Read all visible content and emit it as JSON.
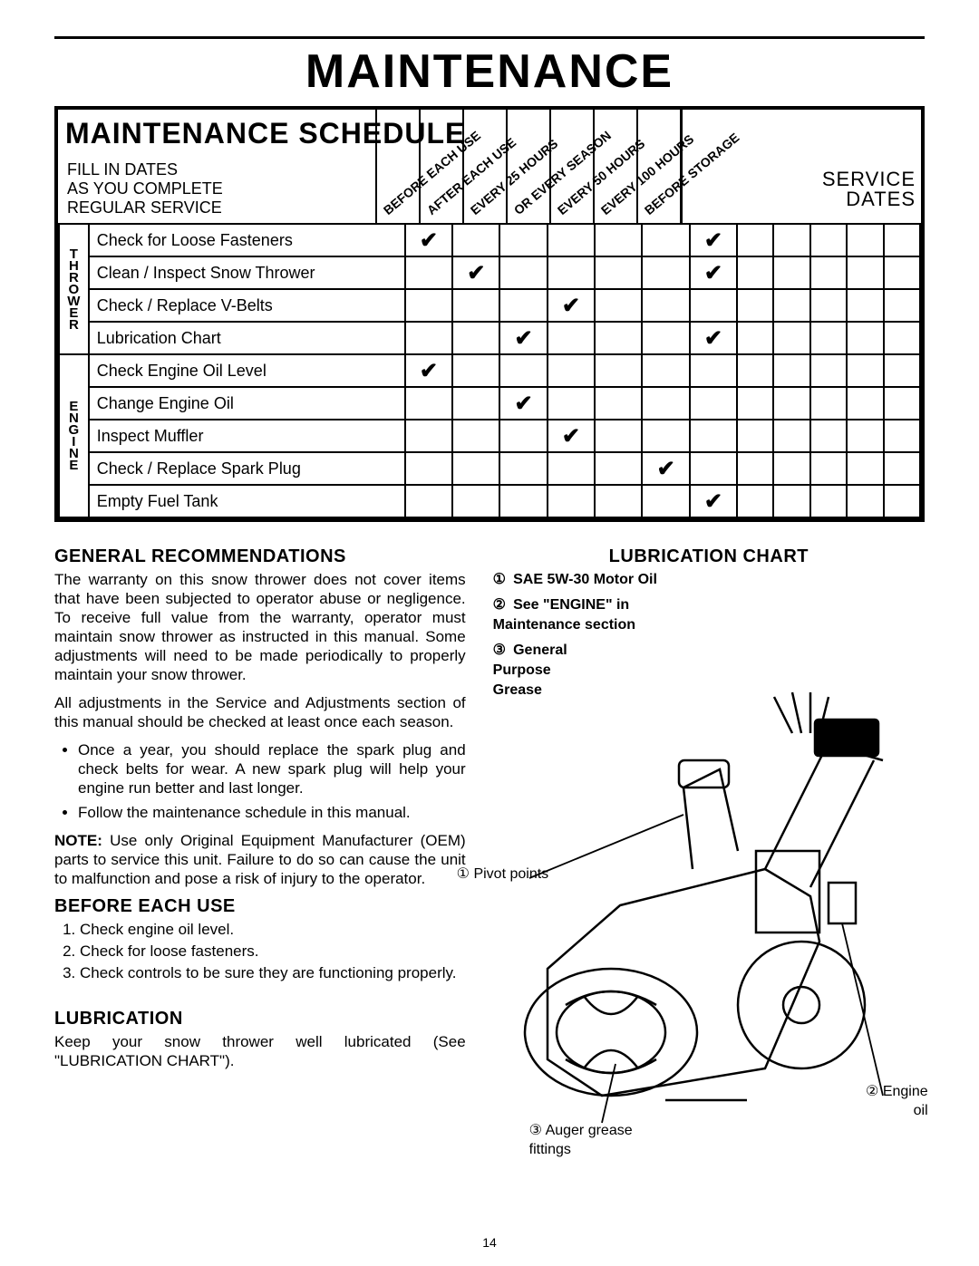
{
  "page_title": "MAINTENANCE",
  "schedule": {
    "title": "MAINTENANCE SCHEDULE",
    "fill_in_lines": [
      "FILL IN DATES",
      "AS YOU COMPLETE",
      "REGULAR SERVICE"
    ],
    "service_dates_label_1": "SERVICE",
    "service_dates_label_2": "DATES",
    "interval_columns": [
      "BEFORE EACH USE",
      "AFTER EACH USE",
      "EVERY 25 HOURS",
      "OR EVERY SEASON",
      "EVERY 50 HOURS",
      "EVERY 100 HOURS",
      "BEFORE STORAGE"
    ],
    "num_date_cols": 5,
    "category_labels": {
      "thrower": "THROWER",
      "engine": "ENGINE"
    },
    "rows": [
      {
        "cat": "thrower",
        "task": "Check for Loose Fasteners",
        "checks": [
          true,
          false,
          false,
          false,
          false,
          false,
          true
        ]
      },
      {
        "cat": "thrower",
        "task": "Clean / Inspect Snow Thrower",
        "checks": [
          false,
          true,
          false,
          false,
          false,
          false,
          true
        ]
      },
      {
        "cat": "thrower",
        "task": "Check / Replace V-Belts",
        "checks": [
          false,
          false,
          false,
          true,
          false,
          false,
          false
        ]
      },
      {
        "cat": "thrower",
        "task": "Lubrication Chart",
        "checks": [
          false,
          false,
          true,
          false,
          false,
          false,
          true
        ]
      },
      {
        "cat": "engine",
        "task": "Check Engine Oil Level",
        "checks": [
          true,
          false,
          false,
          false,
          false,
          false,
          false
        ]
      },
      {
        "cat": "engine",
        "task": "Change Engine Oil",
        "checks": [
          false,
          false,
          true,
          false,
          false,
          false,
          false
        ]
      },
      {
        "cat": "engine",
        "task": "Inspect Muffler",
        "checks": [
          false,
          false,
          false,
          true,
          false,
          false,
          false
        ]
      },
      {
        "cat": "engine",
        "task": "Check / Replace Spark Plug",
        "checks": [
          false,
          false,
          false,
          false,
          false,
          true,
          false
        ]
      },
      {
        "cat": "engine",
        "task": "Empty Fuel Tank",
        "checks": [
          false,
          false,
          false,
          false,
          false,
          false,
          true
        ]
      }
    ]
  },
  "left_column": {
    "h_general": "GENERAL RECOMMENDATIONS",
    "p_general_1": "The warranty on this snow thrower does not cover items that have been subjected to operator abuse or negligence. To receive full value from the warranty, operator must maintain snow thrower as instructed in this manual. Some adjustments will need to be made periodically to properly maintain your snow thrower.",
    "p_general_2": "All adjustments in the Service and Adjustments section of this manual should be checked at least once each season.",
    "bullets": [
      "Once a year, you should replace the spark plug and check belts for wear. A new spark plug will help your engine run better and last longer.",
      "Follow the maintenance schedule in this manual."
    ],
    "note_label": "NOTE:",
    "note_text": "Use only Original Equipment Manufacturer (OEM) parts to service this unit. Failure to do so can cause the unit to malfunction and pose a risk of injury to the operator.",
    "h_before": "BEFORE EACH USE",
    "before_items": [
      "Check engine oil level.",
      "Check for loose fasteners.",
      "Check controls to be sure they are functioning properly."
    ],
    "h_lube": "LUBRICATION",
    "p_lube": "Keep your snow thrower well lubricated (See \"LUBRICATION CHART\")."
  },
  "right_column": {
    "h_chart": "LUBRICATION CHART",
    "items": [
      {
        "num": "①",
        "text": "SAE 5W-30 Motor Oil"
      },
      {
        "num": "②",
        "text": "See \"ENGINE\" in Maintenance section"
      },
      {
        "num": "③",
        "text": "General Purpose Grease"
      }
    ],
    "callouts": {
      "pivot": {
        "num": "①",
        "text": "Pivot points"
      },
      "auger": {
        "num": "③",
        "text": "Auger grease fittings"
      },
      "engine_oil": {
        "num": "②",
        "text": "Engine oil"
      }
    }
  },
  "page_number": "14",
  "colors": {
    "fg": "#000000",
    "bg": "#ffffff"
  }
}
